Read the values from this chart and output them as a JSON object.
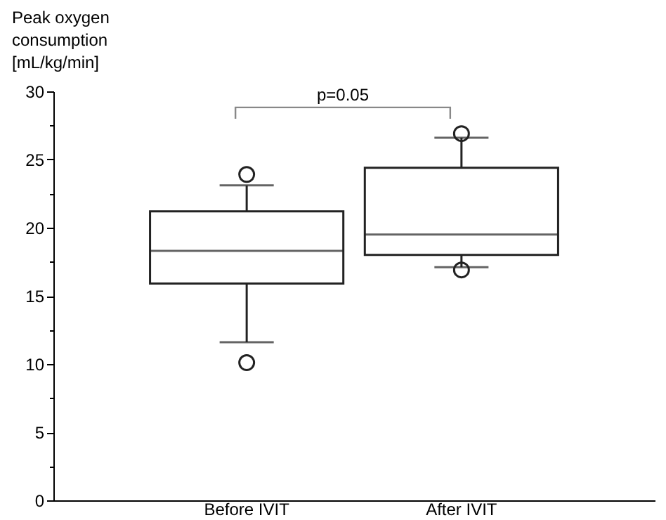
{
  "chart_data": {
    "type": "box",
    "ylabel": "Peak oxygen\nconsumption\n[mL/kg/min]",
    "categories": [
      "Before IVIT",
      "After IVIT"
    ],
    "boxes": [
      {
        "low": 11.6,
        "q1": 15.9,
        "median": 18.3,
        "q3": 21.2,
        "high": 23.1,
        "outliers": [
          10.1,
          23.9
        ]
      },
      {
        "low": 17.1,
        "q1": 18.0,
        "median": 19.5,
        "q3": 24.4,
        "high": 26.6,
        "outliers": [
          16.9,
          26.9
        ]
      }
    ],
    "ylim": [
      0,
      30
    ],
    "yticks": [
      0,
      {
        "value": 2.5,
        "label": null
      },
      5,
      {
        "value": 7.5,
        "label": null
      },
      10,
      {
        "value": 12.5,
        "label": null
      },
      15,
      {
        "value": 17.5,
        "label": null
      },
      20,
      {
        "value": 22.5,
        "label": null
      },
      25,
      {
        "value": 27.5,
        "label": null
      },
      30
    ],
    "grid": false,
    "annotations": [
      "p=0.05"
    ]
  }
}
